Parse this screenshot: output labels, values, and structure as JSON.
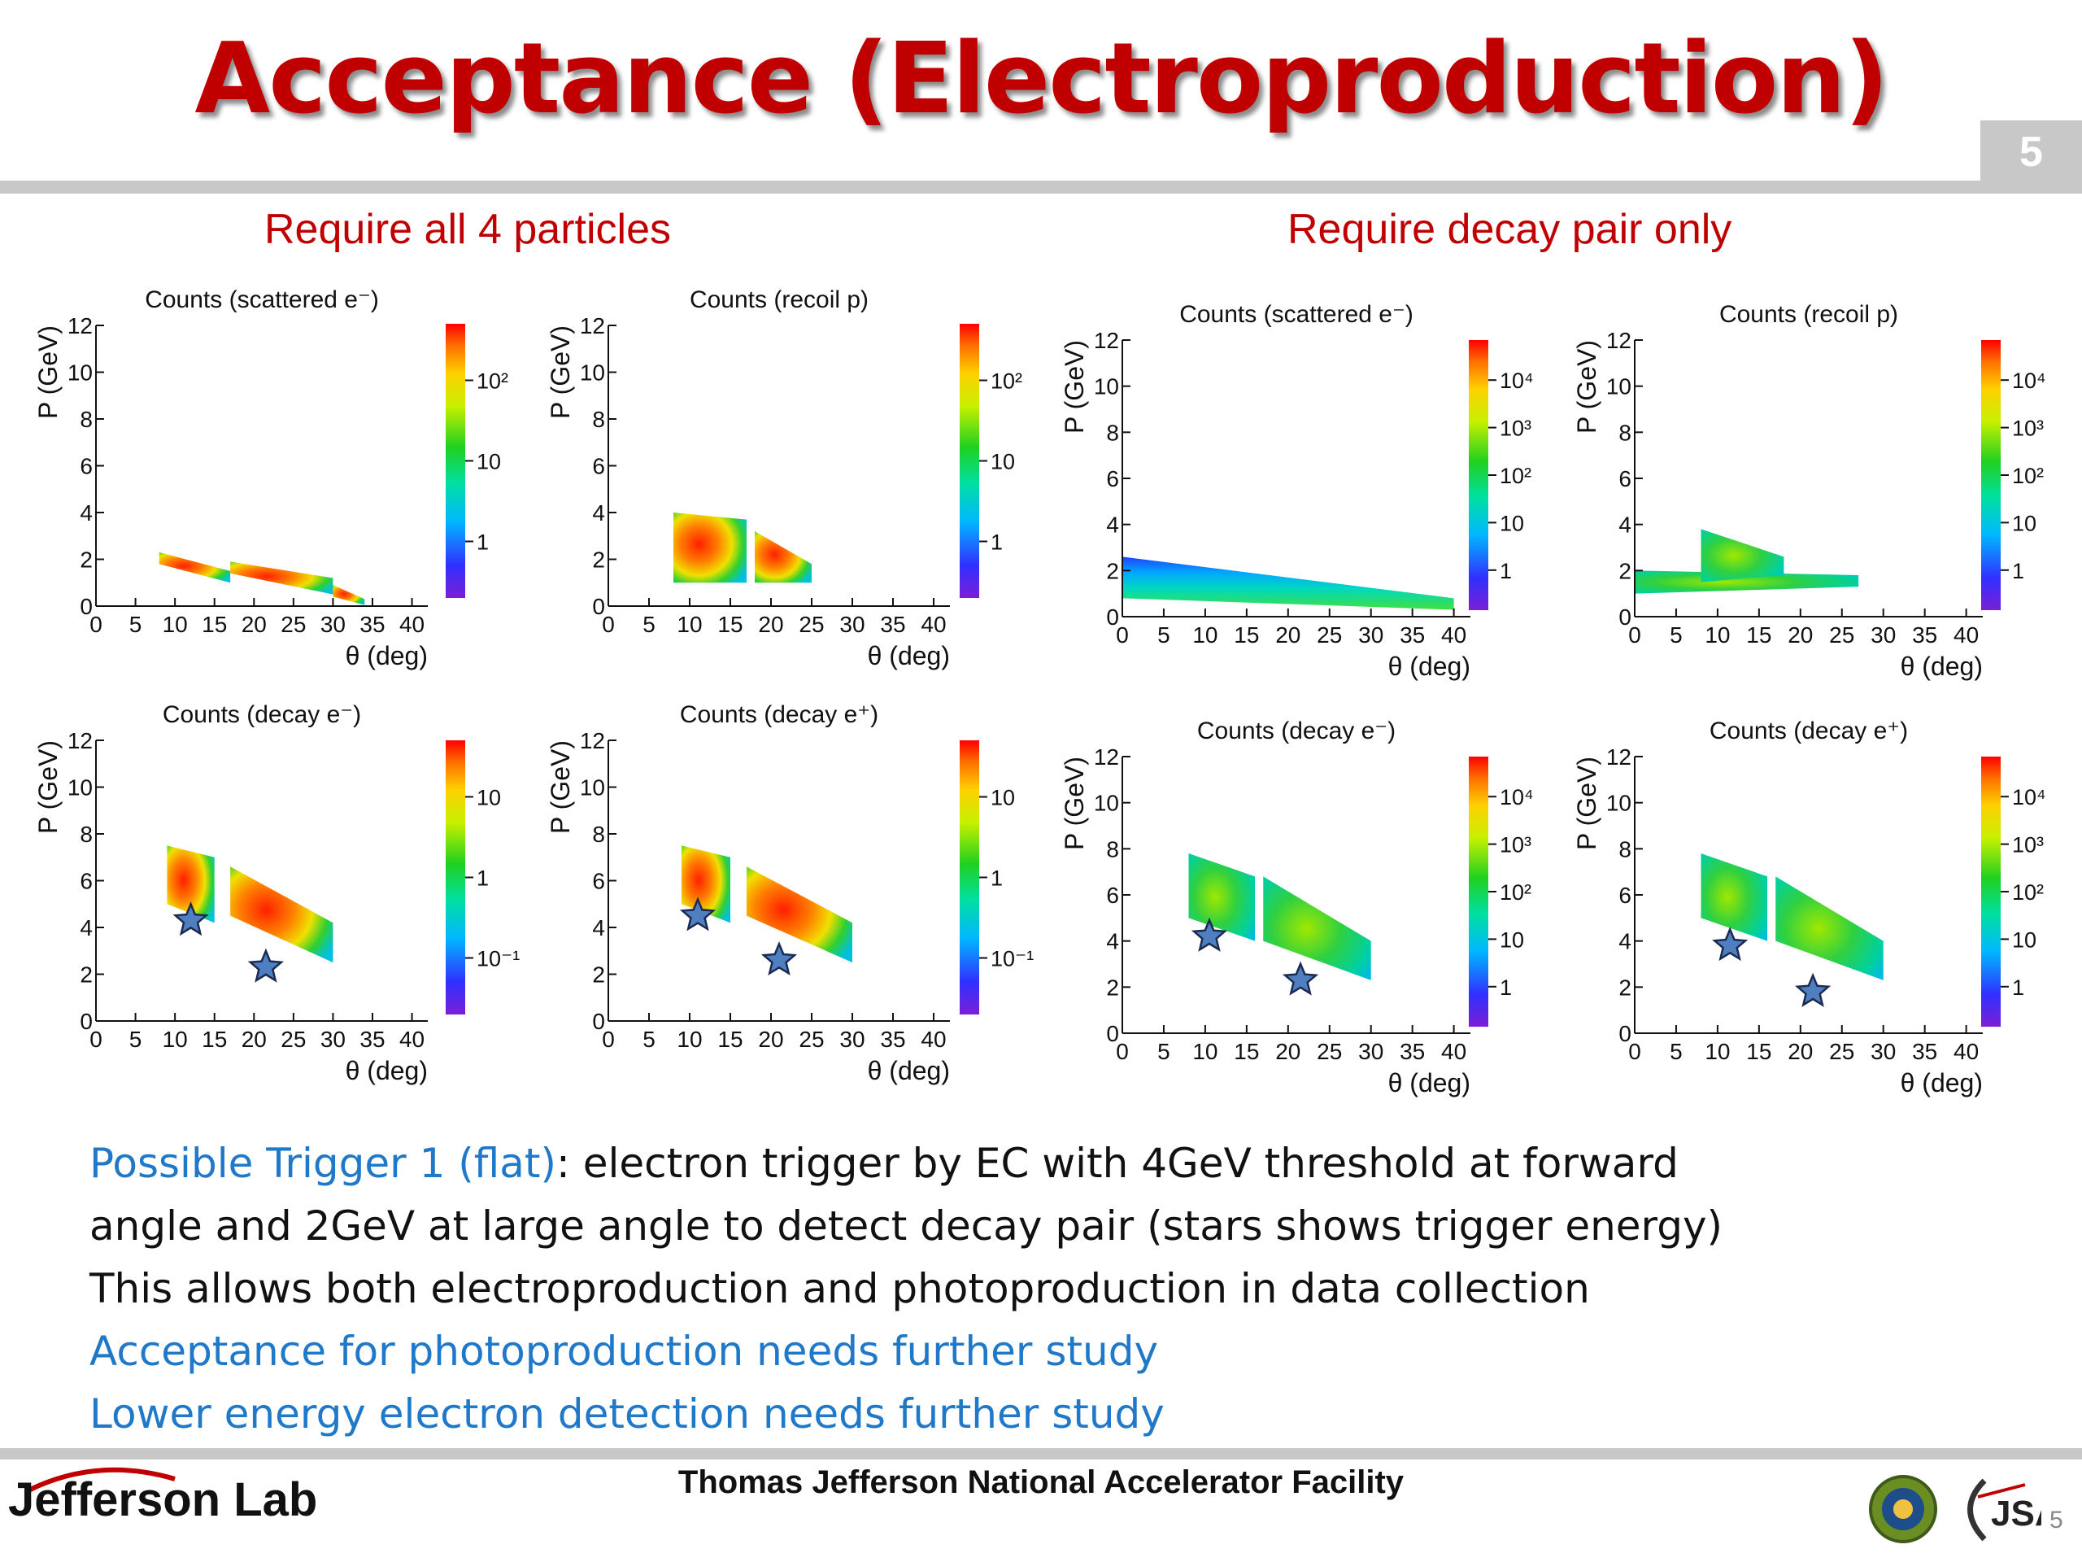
{
  "slide": {
    "title": "Acceptance (Electroproduction)",
    "number": "5",
    "left_heading": "Require all 4 particles",
    "right_heading": "Require decay pair only",
    "notes": {
      "line1_highlight": "Possible Trigger 1 (flat)",
      "line1_rest": ": electron trigger by EC with 4GeV threshold at forward",
      "line2": "angle and 2GeV at large angle to detect decay pair (stars shows trigger energy)",
      "line3": "This allows both electroproduction and photoproduction in data collection",
      "line4": "Acceptance for photoproduction needs further study",
      "line5": "Lower energy electron detection needs further study"
    },
    "footer": {
      "center_text": "Thomas Jefferson National Accelerator Facility",
      "logo_text": "Jefferson Lab",
      "jsa_text": "JSA",
      "page_small": "5"
    }
  },
  "colors": {
    "title": "#c00000",
    "heading": "#c00000",
    "highlight": "#1f78c8",
    "bar": "#c8c8c8",
    "star": "#4f7fc0"
  },
  "chart_data": [
    {
      "type": "heatmap",
      "title": "Counts (scattered e⁻)",
      "xlabel": "θ (deg)",
      "ylabel": "P (GeV)",
      "xlim": [
        0,
        42
      ],
      "ylim": [
        0,
        12
      ],
      "xticks": [
        "0",
        "5",
        "10",
        "15",
        "20",
        "25",
        "30",
        "35",
        "40"
      ],
      "yticks": [
        "0",
        "2",
        "4",
        "6",
        "8",
        "10",
        "12"
      ],
      "colorbar_labels": [
        "1",
        "10",
        "10²"
      ],
      "regions": [
        {
          "from": [
            [
              8,
              1.8
            ],
            [
              17,
              1.0
            ]
          ],
          "to": [
            [
              8,
              2.3
            ],
            [
              17,
              1.5
            ]
          ]
        },
        {
          "from": [
            [
              17,
              1.4
            ],
            [
              30,
              0.5
            ]
          ],
          "to": [
            [
              17,
              1.9
            ],
            [
              30,
              1.2
            ]
          ]
        },
        {
          "from": [
            [
              30,
              0.4
            ],
            [
              34,
              0.05
            ]
          ],
          "to": [
            [
              30,
              0.9
            ],
            [
              34,
              0.3
            ]
          ]
        }
      ],
      "stars": []
    },
    {
      "type": "heatmap",
      "title": "Counts (recoil p)",
      "xlabel": "θ (deg)",
      "ylabel": "P (GeV)",
      "xlim": [
        0,
        42
      ],
      "ylim": [
        0,
        12
      ],
      "xticks": [
        "0",
        "5",
        "10",
        "15",
        "20",
        "25",
        "30",
        "35",
        "40"
      ],
      "yticks": [
        "0",
        "2",
        "4",
        "6",
        "8",
        "10",
        "12"
      ],
      "colorbar_labels": [
        "1",
        "10",
        "10²"
      ],
      "regions": [
        {
          "from": [
            [
              8,
              1.0
            ],
            [
              17,
              1.0
            ]
          ],
          "to": [
            [
              8,
              4.0
            ],
            [
              17,
              3.7
            ]
          ]
        },
        {
          "from": [
            [
              18,
              1.0
            ],
            [
              25,
              1.0
            ]
          ],
          "to": [
            [
              18,
              3.2
            ],
            [
              25,
              1.8
            ]
          ]
        }
      ],
      "stars": []
    },
    {
      "type": "heatmap",
      "title": "Counts (scattered e⁻)",
      "xlabel": "θ (deg)",
      "ylabel": "P (GeV)",
      "xlim": [
        0,
        42
      ],
      "ylim": [
        0,
        12
      ],
      "xticks": [
        "0",
        "5",
        "10",
        "15",
        "20",
        "25",
        "30",
        "35",
        "40"
      ],
      "yticks": [
        "0",
        "2",
        "4",
        "6",
        "8",
        "10",
        "12"
      ],
      "colorbar_labels": [
        "1",
        "10",
        "10²",
        "10³",
        "10⁴"
      ],
      "regions": [
        {
          "from": [
            [
              0,
              0.8
            ],
            [
              40,
              0.3
            ]
          ],
          "to": [
            [
              0,
              2.6
            ],
            [
              40,
              0.8
            ]
          ]
        }
      ],
      "stars": []
    },
    {
      "type": "heatmap",
      "title": "Counts (recoil p)",
      "xlabel": "θ (deg)",
      "ylabel": "P (GeV)",
      "xlim": [
        0,
        42
      ],
      "ylim": [
        0,
        12
      ],
      "xticks": [
        "0",
        "5",
        "10",
        "15",
        "20",
        "25",
        "30",
        "35",
        "40"
      ],
      "yticks": [
        "0",
        "2",
        "4",
        "6",
        "8",
        "10",
        "12"
      ],
      "colorbar_labels": [
        "1",
        "10",
        "10²",
        "10³",
        "10⁴"
      ],
      "regions": [
        {
          "from": [
            [
              0,
              1.0
            ],
            [
              27,
              1.3
            ]
          ],
          "to": [
            [
              0,
              2.0
            ],
            [
              27,
              1.8
            ]
          ]
        },
        {
          "from": [
            [
              8,
              1.5
            ],
            [
              18,
              1.8
            ]
          ],
          "to": [
            [
              8,
              3.8
            ],
            [
              18,
              2.6
            ]
          ]
        }
      ],
      "stars": []
    },
    {
      "type": "heatmap",
      "title": "Counts (decay e⁻)",
      "xlabel": "θ (deg)",
      "ylabel": "P (GeV)",
      "xlim": [
        0,
        42
      ],
      "ylim": [
        0,
        12
      ],
      "xticks": [
        "0",
        "5",
        "10",
        "15",
        "20",
        "25",
        "30",
        "35",
        "40"
      ],
      "yticks": [
        "0",
        "2",
        "4",
        "6",
        "8",
        "10",
        "12"
      ],
      "colorbar_labels": [
        "10⁻¹",
        "1",
        "10"
      ],
      "regions": [
        {
          "from": [
            [
              9,
              5.0
            ],
            [
              15,
              4.2
            ]
          ],
          "to": [
            [
              9,
              7.5
            ],
            [
              15,
              7.0
            ]
          ]
        },
        {
          "from": [
            [
              17,
              4.5
            ],
            [
              30,
              2.5
            ]
          ],
          "to": [
            [
              17,
              6.6
            ],
            [
              30,
              4.2
            ]
          ]
        }
      ],
      "stars": [
        [
          12,
          4.3
        ],
        [
          21.5,
          2.3
        ]
      ]
    },
    {
      "type": "heatmap",
      "title": "Counts (decay e⁺)",
      "xlabel": "θ (deg)",
      "ylabel": "P (GeV)",
      "xlim": [
        0,
        42
      ],
      "ylim": [
        0,
        12
      ],
      "xticks": [
        "0",
        "5",
        "10",
        "15",
        "20",
        "25",
        "30",
        "35",
        "40"
      ],
      "yticks": [
        "0",
        "2",
        "4",
        "6",
        "8",
        "10",
        "12"
      ],
      "colorbar_labels": [
        "10⁻¹",
        "1",
        "10"
      ],
      "regions": [
        {
          "from": [
            [
              9,
              5.0
            ],
            [
              15,
              4.2
            ]
          ],
          "to": [
            [
              9,
              7.5
            ],
            [
              15,
              7.0
            ]
          ]
        },
        {
          "from": [
            [
              17,
              4.5
            ],
            [
              30,
              2.5
            ]
          ],
          "to": [
            [
              17,
              6.6
            ],
            [
              30,
              4.2
            ]
          ]
        }
      ],
      "stars": [
        [
          11,
          4.5
        ],
        [
          21,
          2.6
        ]
      ]
    },
    {
      "type": "heatmap",
      "title": "Counts (decay e⁻)",
      "xlabel": "θ (deg)",
      "ylabel": "P (GeV)",
      "xlim": [
        0,
        42
      ],
      "ylim": [
        0,
        12
      ],
      "xticks": [
        "0",
        "5",
        "10",
        "15",
        "20",
        "25",
        "30",
        "35",
        "40"
      ],
      "yticks": [
        "0",
        "2",
        "4",
        "6",
        "8",
        "10",
        "12"
      ],
      "colorbar_labels": [
        "1",
        "10",
        "10²",
        "10³",
        "10⁴"
      ],
      "regions": [
        {
          "from": [
            [
              8,
              5.0
            ],
            [
              16,
              4.0
            ]
          ],
          "to": [
            [
              8,
              7.8
            ],
            [
              16,
              6.8
            ]
          ]
        },
        {
          "from": [
            [
              17,
              4.0
            ],
            [
              30,
              2.3
            ]
          ],
          "to": [
            [
              17,
              6.8
            ],
            [
              30,
              4.0
            ]
          ]
        }
      ],
      "stars": [
        [
          10.5,
          4.2
        ],
        [
          21.5,
          2.3
        ]
      ]
    },
    {
      "type": "heatmap",
      "title": "Counts (decay e⁺)",
      "xlabel": "θ (deg)",
      "ylabel": "P (GeV)",
      "xlim": [
        0,
        42
      ],
      "ylim": [
        0,
        12
      ],
      "xticks": [
        "0",
        "5",
        "10",
        "15",
        "20",
        "25",
        "30",
        "35",
        "40"
      ],
      "yticks": [
        "0",
        "2",
        "4",
        "6",
        "8",
        "10",
        "12"
      ],
      "colorbar_labels": [
        "1",
        "10",
        "10²",
        "10³",
        "10⁴"
      ],
      "regions": [
        {
          "from": [
            [
              8,
              5.0
            ],
            [
              16,
              4.0
            ]
          ],
          "to": [
            [
              8,
              7.8
            ],
            [
              16,
              6.8
            ]
          ]
        },
        {
          "from": [
            [
              17,
              4.0
            ],
            [
              30,
              2.3
            ]
          ],
          "to": [
            [
              17,
              6.8
            ],
            [
              30,
              4.0
            ]
          ]
        }
      ],
      "stars": [
        [
          11.5,
          3.8
        ],
        [
          21.5,
          1.8
        ]
      ]
    }
  ]
}
